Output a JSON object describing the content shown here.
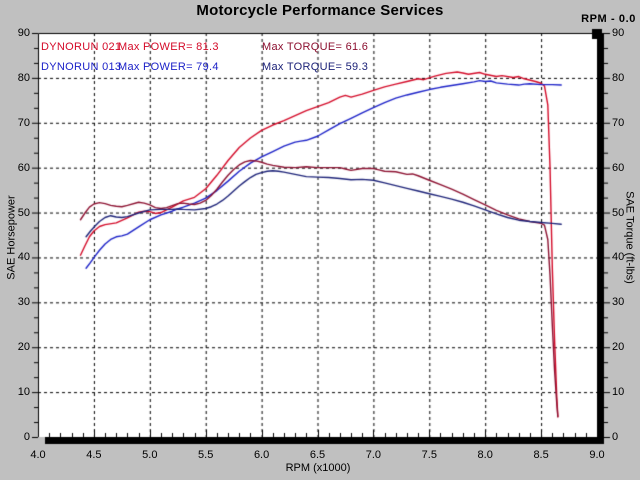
{
  "header": {
    "title": "Motorcycle Performance Services",
    "rpm_readout": "RPM - 0.0"
  },
  "legend": {
    "rows": [
      {
        "run": "DYNORUN 021",
        "power": "Max POWER= 81.3",
        "torque": "Max TORQUE= 61.6",
        "power_color": "#d40a28",
        "torque_color": "#8c1030"
      },
      {
        "run": "DYNORUN 013",
        "power": "Max POWER= 79.4",
        "torque": "Max TORQUE= 59.3",
        "power_color": "#1c22c8",
        "torque_color": "#1c2278"
      }
    ]
  },
  "chart_data": {
    "type": "line",
    "title": "Motorcycle Performance Services",
    "xlabel": "RPM (x1000)",
    "ylabel_left": "SAE Horsepower",
    "ylabel_right": "SAE Torque (ft-lbs)",
    "xlim": [
      4.0,
      9.0
    ],
    "ylim": [
      0,
      90
    ],
    "grid": "dashed-black",
    "background": "#c0c0c0",
    "plot_background": "#ffffff",
    "xticks": [
      "4.0",
      "4.5",
      "5.0",
      "5.5",
      "6.0",
      "6.5",
      "7.0",
      "7.5",
      "8.0",
      "8.5",
      "9.0"
    ],
    "yticks_left": [
      "90",
      "80",
      "70",
      "60",
      "50",
      "40",
      "30",
      "20",
      "10",
      "0"
    ],
    "yticks_right": [
      "90",
      "80",
      "70",
      "60",
      "50",
      "40",
      "30",
      "20",
      "10",
      "0"
    ],
    "series": [
      {
        "name": "DYNORUN 021 Power",
        "unit": "hp",
        "axis": "left",
        "color": "#d40a28",
        "max": 81.3,
        "points": [
          [
            4.38,
            40.5
          ],
          [
            4.42,
            42.6
          ],
          [
            4.46,
            44.6
          ],
          [
            4.5,
            45.9
          ],
          [
            4.55,
            46.9
          ],
          [
            4.6,
            47.3
          ],
          [
            4.7,
            47.7
          ],
          [
            4.8,
            48.8
          ],
          [
            4.9,
            50.1
          ],
          [
            4.95,
            50.3
          ],
          [
            5.0,
            50.2
          ],
          [
            5.05,
            49.8
          ],
          [
            5.1,
            50.0
          ],
          [
            5.2,
            51.2
          ],
          [
            5.3,
            52.6
          ],
          [
            5.4,
            53.4
          ],
          [
            5.5,
            55.3
          ],
          [
            5.6,
            58.3
          ],
          [
            5.7,
            61.6
          ],
          [
            5.8,
            64.5
          ],
          [
            5.9,
            66.6
          ],
          [
            6.0,
            68.3
          ],
          [
            6.1,
            69.5
          ],
          [
            6.2,
            70.5
          ],
          [
            6.3,
            71.6
          ],
          [
            6.4,
            72.7
          ],
          [
            6.5,
            73.6
          ],
          [
            6.6,
            74.5
          ],
          [
            6.7,
            75.7
          ],
          [
            6.75,
            76.1
          ],
          [
            6.8,
            75.7
          ],
          [
            6.9,
            76.4
          ],
          [
            7.0,
            77.2
          ],
          [
            7.1,
            78.0
          ],
          [
            7.2,
            78.6
          ],
          [
            7.3,
            79.2
          ],
          [
            7.4,
            79.8
          ],
          [
            7.45,
            79.6
          ],
          [
            7.55,
            80.4
          ],
          [
            7.65,
            81.0
          ],
          [
            7.75,
            81.3
          ],
          [
            7.8,
            81.1
          ],
          [
            7.85,
            80.8
          ],
          [
            7.95,
            81.2
          ],
          [
            8.0,
            80.8
          ],
          [
            8.1,
            80.3
          ],
          [
            8.15,
            80.5
          ],
          [
            8.25,
            80.1
          ],
          [
            8.3,
            80.3
          ],
          [
            8.35,
            79.8
          ],
          [
            8.45,
            79.2
          ],
          [
            8.5,
            78.8
          ],
          [
            8.53,
            78.2
          ],
          [
            8.56,
            74.0
          ],
          [
            8.58,
            60.0
          ],
          [
            8.6,
            38.0
          ],
          [
            8.62,
            22.0
          ],
          [
            8.64,
            9.0
          ],
          [
            8.65,
            4.5
          ]
        ]
      },
      {
        "name": "DYNORUN 013 Power",
        "unit": "hp",
        "axis": "left",
        "color": "#1c22c8",
        "max": 79.4,
        "points": [
          [
            4.43,
            37.6
          ],
          [
            4.47,
            38.9
          ],
          [
            4.51,
            40.3
          ],
          [
            4.55,
            41.6
          ],
          [
            4.6,
            43.0
          ],
          [
            4.65,
            44.0
          ],
          [
            4.7,
            44.6
          ],
          [
            4.75,
            44.8
          ],
          [
            4.8,
            45.2
          ],
          [
            4.9,
            46.8
          ],
          [
            5.0,
            48.4
          ],
          [
            5.1,
            49.5
          ],
          [
            5.2,
            50.3
          ],
          [
            5.25,
            50.8
          ],
          [
            5.3,
            51.2
          ],
          [
            5.4,
            52.1
          ],
          [
            5.5,
            53.2
          ],
          [
            5.6,
            54.9
          ],
          [
            5.7,
            57.0
          ],
          [
            5.8,
            59.2
          ],
          [
            5.9,
            61.0
          ],
          [
            6.0,
            62.4
          ],
          [
            6.1,
            63.6
          ],
          [
            6.2,
            64.8
          ],
          [
            6.3,
            65.7
          ],
          [
            6.35,
            65.9
          ],
          [
            6.4,
            66.1
          ],
          [
            6.5,
            67.0
          ],
          [
            6.6,
            68.4
          ],
          [
            6.7,
            69.8
          ],
          [
            6.8,
            71.0
          ],
          [
            6.9,
            72.2
          ],
          [
            7.0,
            73.4
          ],
          [
            7.1,
            74.5
          ],
          [
            7.2,
            75.5
          ],
          [
            7.3,
            76.2
          ],
          [
            7.4,
            76.8
          ],
          [
            7.5,
            77.4
          ],
          [
            7.6,
            77.9
          ],
          [
            7.7,
            78.3
          ],
          [
            7.8,
            78.7
          ],
          [
            7.9,
            79.1
          ],
          [
            7.95,
            79.4
          ],
          [
            8.0,
            79.2
          ],
          [
            8.05,
            79.3
          ],
          [
            8.1,
            78.9
          ],
          [
            8.2,
            78.6
          ],
          [
            8.3,
            78.4
          ],
          [
            8.35,
            78.6
          ],
          [
            8.4,
            78.7
          ],
          [
            8.5,
            78.5
          ],
          [
            8.6,
            78.5
          ],
          [
            8.68,
            78.4
          ]
        ]
      },
      {
        "name": "DYNORUN 021 Torque",
        "unit": "ft-lbs",
        "axis": "right",
        "color": "#8c1030",
        "max": 61.6,
        "points": [
          [
            4.38,
            48.4
          ],
          [
            4.42,
            49.9
          ],
          [
            4.46,
            51.2
          ],
          [
            4.5,
            51.9
          ],
          [
            4.55,
            52.2
          ],
          [
            4.6,
            52.0
          ],
          [
            4.65,
            51.6
          ],
          [
            4.7,
            51.4
          ],
          [
            4.75,
            51.3
          ],
          [
            4.8,
            51.6
          ],
          [
            4.9,
            52.3
          ],
          [
            4.95,
            52.1
          ],
          [
            5.0,
            51.7
          ],
          [
            5.05,
            51.1
          ],
          [
            5.1,
            50.9
          ],
          [
            5.15,
            51.1
          ],
          [
            5.25,
            52.0
          ],
          [
            5.3,
            52.1
          ],
          [
            5.35,
            51.9
          ],
          [
            5.4,
            51.8
          ],
          [
            5.45,
            52.1
          ],
          [
            5.5,
            52.7
          ],
          [
            5.55,
            53.8
          ],
          [
            5.6,
            55.2
          ],
          [
            5.65,
            56.8
          ],
          [
            5.7,
            58.3
          ],
          [
            5.75,
            59.6
          ],
          [
            5.8,
            60.6
          ],
          [
            5.85,
            61.3
          ],
          [
            5.9,
            61.6
          ],
          [
            5.95,
            61.5
          ],
          [
            6.0,
            61.2
          ],
          [
            6.05,
            60.8
          ],
          [
            6.1,
            60.5
          ],
          [
            6.2,
            60.1
          ],
          [
            6.3,
            60.0
          ],
          [
            6.4,
            60.2
          ],
          [
            6.5,
            60.0
          ],
          [
            6.6,
            60.0
          ],
          [
            6.7,
            60.0
          ],
          [
            6.75,
            59.7
          ],
          [
            6.8,
            59.4
          ],
          [
            6.9,
            59.8
          ],
          [
            7.0,
            59.8
          ],
          [
            7.05,
            59.5
          ],
          [
            7.1,
            59.2
          ],
          [
            7.2,
            59.1
          ],
          [
            7.3,
            58.5
          ],
          [
            7.35,
            58.6
          ],
          [
            7.4,
            58.2
          ],
          [
            7.5,
            57.2
          ],
          [
            7.6,
            56.2
          ],
          [
            7.7,
            55.2
          ],
          [
            7.8,
            54.1
          ],
          [
            7.9,
            52.9
          ],
          [
            8.0,
            51.7
          ],
          [
            8.1,
            50.5
          ],
          [
            8.2,
            49.5
          ],
          [
            8.3,
            48.6
          ],
          [
            8.4,
            48.0
          ],
          [
            8.5,
            47.6
          ],
          [
            8.53,
            47.2
          ],
          [
            8.56,
            44.0
          ],
          [
            8.58,
            36.0
          ],
          [
            8.6,
            25.0
          ],
          [
            8.62,
            15.0
          ],
          [
            8.64,
            7.5
          ],
          [
            8.65,
            4.5
          ]
        ]
      },
      {
        "name": "DYNORUN 013 Torque",
        "unit": "ft-lbs",
        "axis": "right",
        "color": "#1c2278",
        "max": 59.3,
        "points": [
          [
            4.43,
            44.6
          ],
          [
            4.47,
            45.9
          ],
          [
            4.51,
            47.0
          ],
          [
            4.55,
            48.0
          ],
          [
            4.6,
            48.9
          ],
          [
            4.65,
            49.3
          ],
          [
            4.7,
            49.0
          ],
          [
            4.75,
            48.9
          ],
          [
            4.8,
            49.1
          ],
          [
            4.9,
            49.9
          ],
          [
            5.0,
            50.6
          ],
          [
            5.1,
            50.7
          ],
          [
            5.2,
            50.7
          ],
          [
            5.25,
            50.8
          ],
          [
            5.3,
            50.7
          ],
          [
            5.4,
            50.6
          ],
          [
            5.5,
            50.9
          ],
          [
            5.55,
            51.3
          ],
          [
            5.6,
            51.9
          ],
          [
            5.65,
            52.7
          ],
          [
            5.7,
            53.7
          ],
          [
            5.75,
            54.8
          ],
          [
            5.8,
            55.9
          ],
          [
            5.85,
            56.9
          ],
          [
            5.9,
            57.8
          ],
          [
            5.95,
            58.5
          ],
          [
            6.0,
            58.9
          ],
          [
            6.05,
            59.2
          ],
          [
            6.1,
            59.3
          ],
          [
            6.15,
            59.2
          ],
          [
            6.2,
            59.0
          ],
          [
            6.3,
            58.5
          ],
          [
            6.4,
            58.0
          ],
          [
            6.5,
            57.9
          ],
          [
            6.6,
            57.8
          ],
          [
            6.7,
            57.6
          ],
          [
            6.8,
            57.3
          ],
          [
            6.9,
            57.4
          ],
          [
            7.0,
            57.2
          ],
          [
            7.1,
            56.6
          ],
          [
            7.2,
            56.0
          ],
          [
            7.3,
            55.4
          ],
          [
            7.4,
            54.8
          ],
          [
            7.5,
            54.2
          ],
          [
            7.6,
            53.6
          ],
          [
            7.7,
            53.0
          ],
          [
            7.8,
            52.3
          ],
          [
            7.9,
            51.5
          ],
          [
            8.0,
            50.6
          ],
          [
            8.1,
            49.7
          ],
          [
            8.2,
            48.9
          ],
          [
            8.3,
            48.3
          ],
          [
            8.4,
            48.0
          ],
          [
            8.5,
            47.8
          ],
          [
            8.6,
            47.6
          ],
          [
            8.68,
            47.4
          ]
        ]
      }
    ]
  }
}
